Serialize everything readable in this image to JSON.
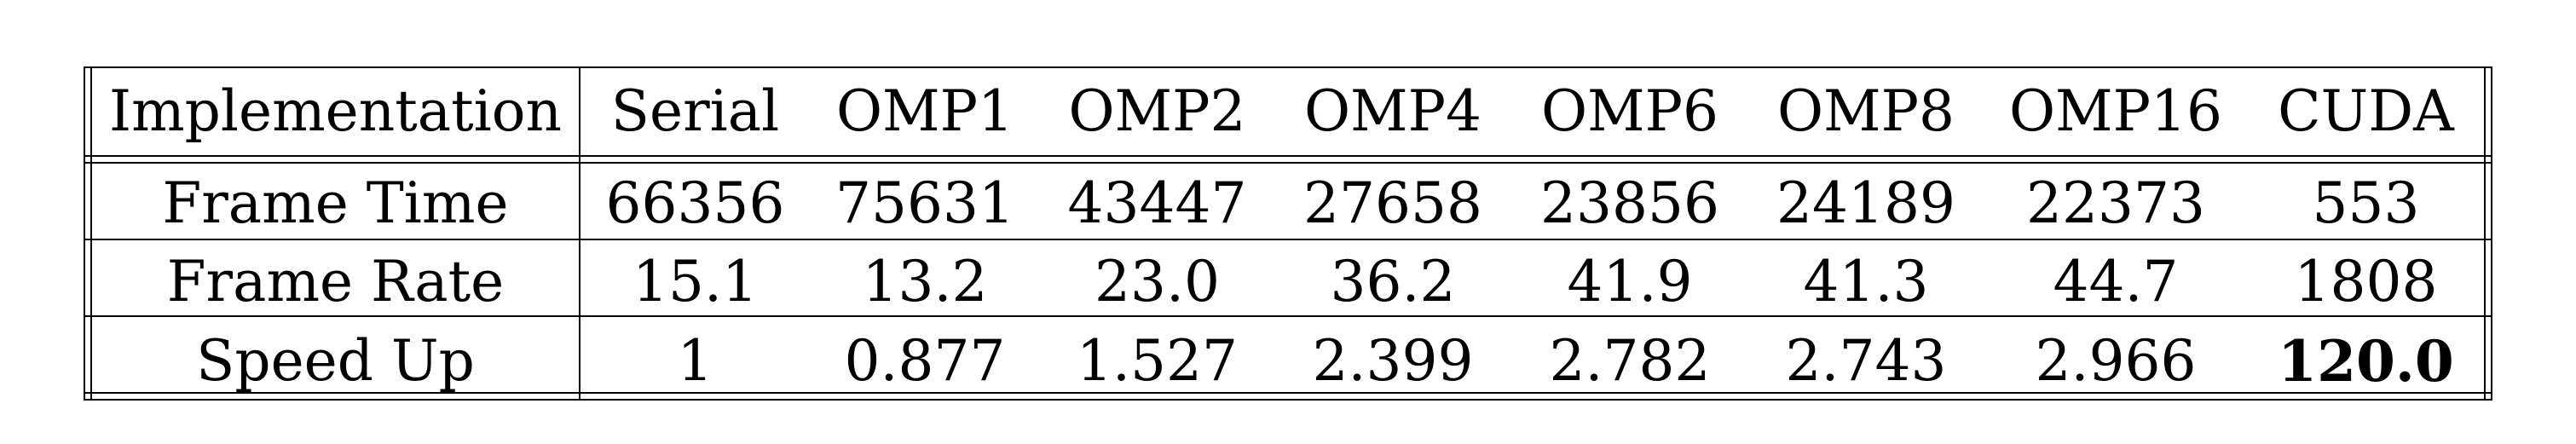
{
  "table": {
    "header": [
      "Implementation",
      "Serial",
      "OMP1",
      "OMP2",
      "OMP4",
      "OMP6",
      "OMP8",
      "OMP16",
      "CUDA"
    ],
    "rows": [
      {
        "label": "Frame Time",
        "values": [
          "66356",
          "75631",
          "43447",
          "27658",
          "23856",
          "24189",
          "22373",
          "553"
        ]
      },
      {
        "label": "Frame Rate",
        "values": [
          "15.1",
          "13.2",
          "23.0",
          "36.2",
          "41.9",
          "41.3",
          "44.7",
          "1808"
        ]
      },
      {
        "label": "Speed Up",
        "values": [
          "1",
          "0.877",
          "1.527",
          "2.399",
          "2.782",
          "2.743",
          "2.966",
          "120.0"
        ]
      }
    ]
  }
}
